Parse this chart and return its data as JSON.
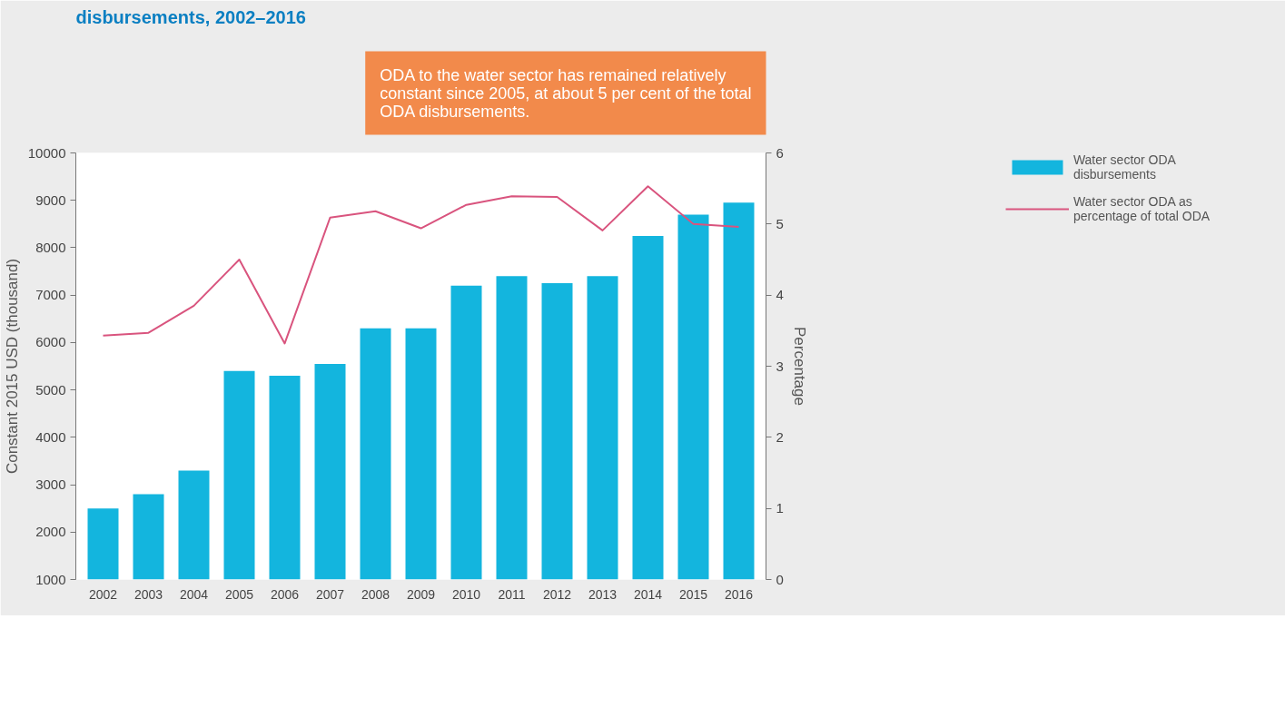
{
  "chart_data": {
    "type": "bar",
    "title": "disbursements, 2002–2016",
    "annotations": [
      "ODA to the water sector has remained relatively constant since 2005, at about 5 per cent of the total ODA disbursements."
    ],
    "categories": [
      "2002",
      "2003",
      "2004",
      "2005",
      "2006",
      "2007",
      "2008",
      "2009",
      "2010",
      "2011",
      "2012",
      "2013",
      "2014",
      "2015",
      "2016"
    ],
    "ylabel": "Constant 2015 USD (thousand)",
    "y2label": "Percentage",
    "ylim": [
      1000,
      10000
    ],
    "yticks": [
      1000,
      2000,
      3000,
      4000,
      5000,
      6000,
      7000,
      8000,
      9000,
      10000
    ],
    "y2lim": [
      0,
      6
    ],
    "y2ticks": [
      0,
      1,
      2,
      3,
      4,
      5,
      6
    ],
    "grid": false,
    "legend": "right",
    "series": [
      {
        "name": "Water sector ODA disbursements",
        "color": "#13b5de",
        "values": [
          2500,
          2800,
          3300,
          5400,
          5300,
          5550,
          6300,
          6300,
          7200,
          7400,
          7250,
          7400,
          8250,
          8700,
          8950
        ]
      },
      {
        "name": "Water sector ODA as percentage of total ODA",
        "type": "line",
        "axis": "y2",
        "color": "#d9547e",
        "values": [
          3.43,
          3.47,
          3.85,
          4.5,
          3.32,
          5.09,
          5.18,
          4.94,
          5.27,
          5.39,
          5.38,
          4.91,
          5.53,
          5.0,
          4.96
        ]
      }
    ]
  }
}
